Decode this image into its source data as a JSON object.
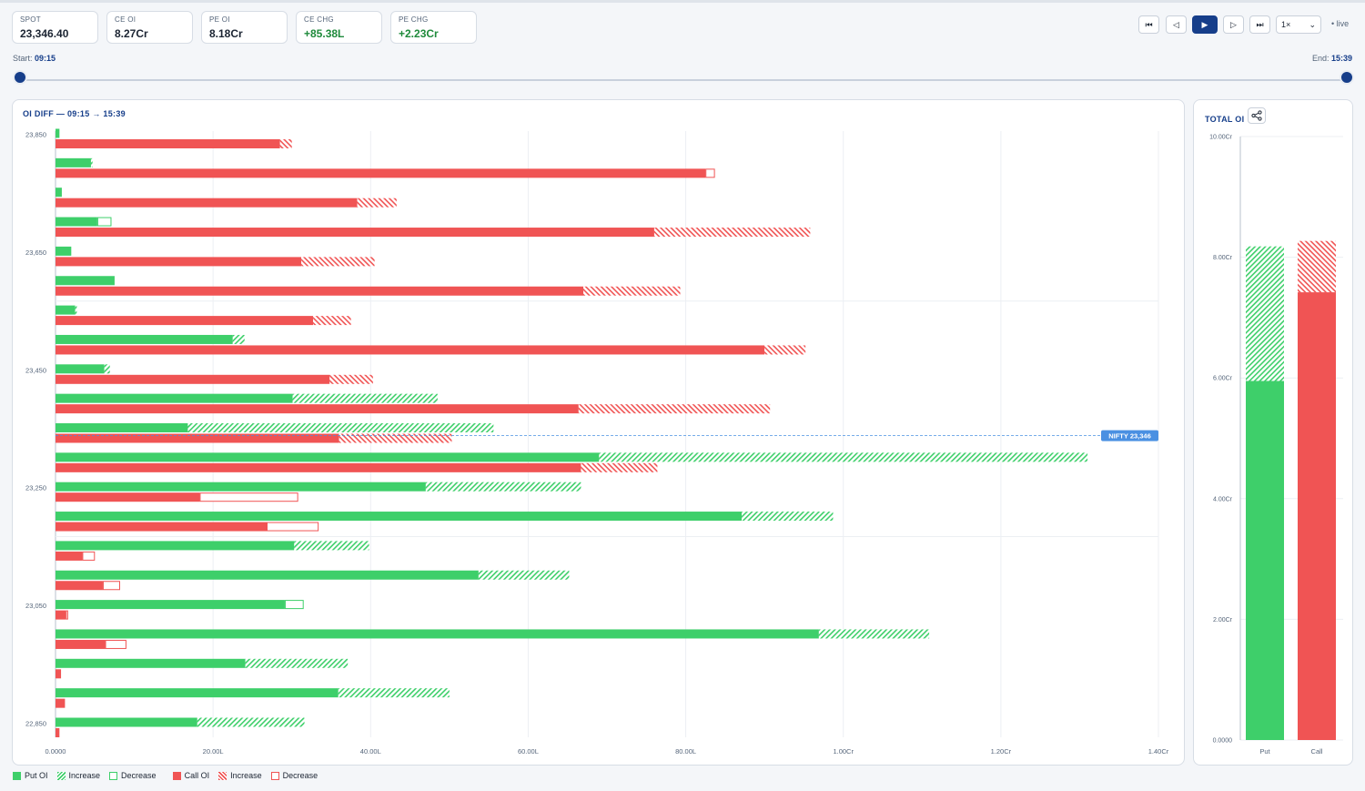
{
  "stats": [
    {
      "label": "SPOT",
      "value": "23,346.40",
      "tone": "neutral"
    },
    {
      "label": "CE OI",
      "value": "8.27Cr",
      "tone": "neutral"
    },
    {
      "label": "PE OI",
      "value": "8.18Cr",
      "tone": "neutral"
    },
    {
      "label": "CE CHG",
      "value": "+85.38L",
      "tone": "pos"
    },
    {
      "label": "PE CHG",
      "value": "+2.23Cr",
      "tone": "pos"
    }
  ],
  "controls": {
    "first_icon": "skip-to-start-icon",
    "prev_icon": "step-back-icon",
    "play_icon": "play-icon",
    "next_icon": "step-forward-icon",
    "last_icon": "skip-to-end-icon",
    "speed": "1×",
    "live": "• live"
  },
  "slider": {
    "start_label": "Start:",
    "start_time": "09:15",
    "end_label": "End:",
    "end_time": "15:39"
  },
  "colors": {
    "put": "#3ecf6a",
    "call": "#f05454",
    "accent": "#163e8a",
    "spot_line": "#4a90e2"
  },
  "main_chart_title": "OI DIFF — 09:15 → 15:39",
  "side_chart_title": "TOTAL OI",
  "legend": {
    "put": "Put OI",
    "put_increase": "Increase",
    "put_decrease": "Decrease",
    "call": "Call OI",
    "call_increase": "Increase",
    "call_decrease": "Decrease"
  },
  "chart_data": [
    {
      "type": "bar",
      "orientation": "horizontal",
      "title": "OI DIFF — 09:15 → 15:39",
      "unit": "lakh",
      "xlim": [
        0,
        140
      ],
      "x_ticks": [
        "0.0000",
        "20.00L",
        "40.00L",
        "60.00L",
        "80.00L",
        "1.00Cr",
        "1.20Cr",
        "1.40Cr"
      ],
      "y_tick_labels": [
        "23,850",
        "23,650",
        "23,450",
        "23,250",
        "23,050",
        "22,850"
      ],
      "spot_marker": {
        "label": "NIFTY 23,346",
        "value": 23346
      },
      "strikes": [
        {
          "strike": 23850,
          "put": {
            "base": 0.5,
            "change": 0,
            "kind": "none"
          },
          "call": {
            "base": 28.5,
            "change": 1.5,
            "kind": "increase"
          }
        },
        {
          "strike": 23800,
          "put": {
            "base": 4.5,
            "change": 0.2,
            "kind": "increase"
          },
          "call": {
            "base": 82.5,
            "change": 1.2,
            "kind": "decrease"
          }
        },
        {
          "strike": 23750,
          "put": {
            "base": 0.8,
            "change": 0,
            "kind": "none"
          },
          "call": {
            "base": 38.3,
            "change": 5.0,
            "kind": "increase"
          }
        },
        {
          "strike": 23700,
          "put": {
            "base": 5.3,
            "change": 1.8,
            "kind": "decrease"
          },
          "call": {
            "base": 76.0,
            "change": 19.8,
            "kind": "increase"
          }
        },
        {
          "strike": 23650,
          "put": {
            "base": 2.0,
            "change": 0.1,
            "kind": "decrease"
          },
          "call": {
            "base": 31.2,
            "change": 9.3,
            "kind": "increase"
          }
        },
        {
          "strike": 23600,
          "put": {
            "base": 7.5,
            "change": 0,
            "kind": "none"
          },
          "call": {
            "base": 67.0,
            "change": 12.3,
            "kind": "increase"
          }
        },
        {
          "strike": 23550,
          "put": {
            "base": 2.5,
            "change": 0.2,
            "kind": "increase"
          },
          "call": {
            "base": 32.7,
            "change": 4.8,
            "kind": "increase"
          }
        },
        {
          "strike": 23500,
          "put": {
            "base": 22.5,
            "change": 1.5,
            "kind": "increase"
          },
          "call": {
            "base": 90.0,
            "change": 5.2,
            "kind": "increase"
          }
        },
        {
          "strike": 23450,
          "put": {
            "base": 6.2,
            "change": 0.7,
            "kind": "increase"
          },
          "call": {
            "base": 34.8,
            "change": 5.5,
            "kind": "increase"
          }
        },
        {
          "strike": 23400,
          "put": {
            "base": 30.1,
            "change": 18.4,
            "kind": "increase"
          },
          "call": {
            "base": 66.4,
            "change": 24.3,
            "kind": "increase"
          }
        },
        {
          "strike": 23350,
          "put": {
            "base": 16.8,
            "change": 38.8,
            "kind": "increase"
          },
          "call": {
            "base": 36.0,
            "change": 14.3,
            "kind": "increase"
          }
        },
        {
          "strike": 23300,
          "put": {
            "base": 69.0,
            "change": 62.0,
            "kind": "increase"
          },
          "call": {
            "base": 66.7,
            "change": 9.7,
            "kind": "increase"
          }
        },
        {
          "strike": 23250,
          "put": {
            "base": 47.0,
            "change": 19.7,
            "kind": "increase"
          },
          "call": {
            "base": 18.3,
            "change": 12.5,
            "kind": "decrease"
          }
        },
        {
          "strike": 23200,
          "put": {
            "base": 87.1,
            "change": 11.6,
            "kind": "increase"
          },
          "call": {
            "base": 26.8,
            "change": 6.6,
            "kind": "decrease"
          }
        },
        {
          "strike": 23150,
          "put": {
            "base": 30.3,
            "change": 9.5,
            "kind": "increase"
          },
          "call": {
            "base": 3.4,
            "change": 1.6,
            "kind": "decrease"
          }
        },
        {
          "strike": 23100,
          "put": {
            "base": 53.7,
            "change": 11.5,
            "kind": "increase"
          },
          "call": {
            "base": 6.0,
            "change": 2.2,
            "kind": "decrease"
          }
        },
        {
          "strike": 23050,
          "put": {
            "base": 29.1,
            "change": 2.4,
            "kind": "decrease"
          },
          "call": {
            "base": 1.3,
            "change": 0.3,
            "kind": "decrease"
          }
        },
        {
          "strike": 23000,
          "put": {
            "base": 96.9,
            "change": 14.0,
            "kind": "increase"
          },
          "call": {
            "base": 6.3,
            "change": 2.7,
            "kind": "decrease"
          }
        },
        {
          "strike": 22950,
          "put": {
            "base": 24.1,
            "change": 13.0,
            "kind": "increase"
          },
          "call": {
            "base": 0.7,
            "change": 0,
            "kind": "none"
          }
        },
        {
          "strike": 22900,
          "put": {
            "base": 35.9,
            "change": 14.1,
            "kind": "increase"
          },
          "call": {
            "base": 1.2,
            "change": 0,
            "kind": "none"
          }
        },
        {
          "strike": 22850,
          "put": {
            "base": 18.0,
            "change": 13.6,
            "kind": "increase"
          },
          "call": {
            "base": 0.5,
            "change": 0,
            "kind": "none"
          }
        }
      ]
    },
    {
      "type": "bar",
      "title": "TOTAL OI",
      "unit": "crore",
      "ylim": [
        0,
        10
      ],
      "y_ticks": [
        "0.0000",
        "2.00Cr",
        "4.00Cr",
        "6.00Cr",
        "8.00Cr",
        "10.00Cr"
      ],
      "categories": [
        "Put",
        "Call"
      ],
      "series": [
        {
          "category": "Put",
          "base": 5.95,
          "change": 2.23,
          "kind": "increase"
        },
        {
          "category": "Call",
          "base": 7.42,
          "change": 0.85,
          "kind": "increase"
        }
      ]
    }
  ]
}
